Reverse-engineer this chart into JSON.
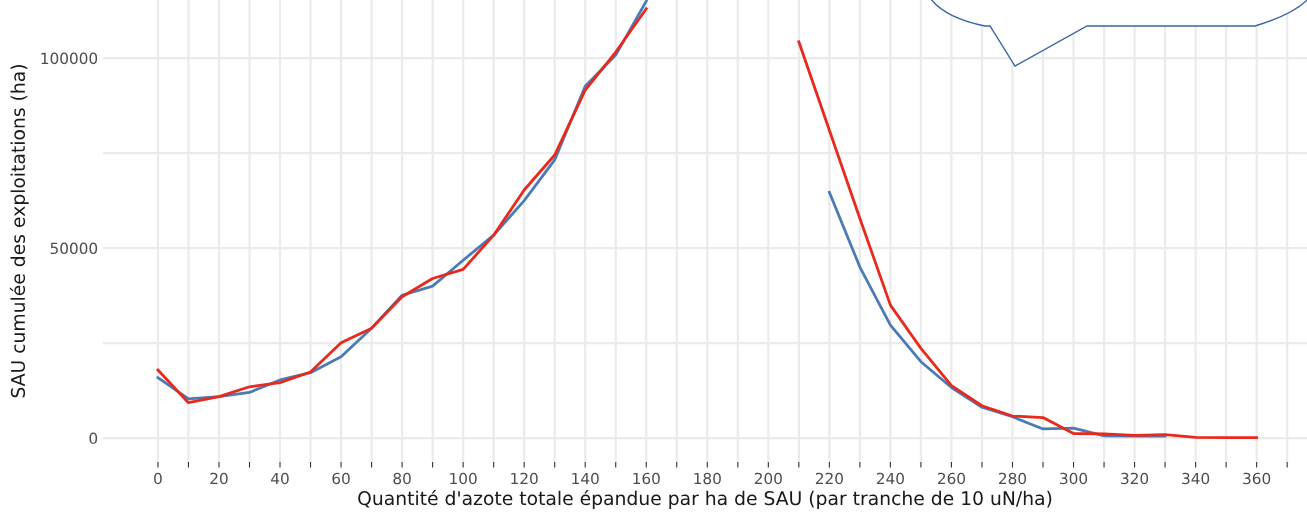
{
  "chart_data": {
    "type": "line",
    "xlabel": "Quantité d'azote totale épandue par ha de SAU (par tranche de 10 uN/ha)",
    "ylabel": "SAU cumulée des exploitations (ha)",
    "x": [
      0,
      10,
      20,
      30,
      40,
      50,
      60,
      70,
      80,
      90,
      100,
      110,
      120,
      130,
      140,
      150,
      160,
      170,
      180,
      190,
      200,
      210,
      220,
      230,
      240,
      250,
      260,
      270,
      280,
      290,
      300,
      310,
      320,
      330,
      340,
      350,
      360
    ],
    "series": [
      {
        "color": "#4a7bb7",
        "values": [
          15900,
          10300,
          10900,
          12000,
          15300,
          17200,
          21400,
          28900,
          37600,
          40000,
          46800,
          53400,
          62500,
          73200,
          92600,
          100800,
          115000,
          null,
          null,
          null,
          null,
          null,
          64700,
          45000,
          29700,
          20100,
          13300,
          8100,
          5600,
          2400,
          2600,
          600,
          500,
          500,
          null,
          null,
          null
        ]
      },
      {
        "color": "#e8291c",
        "values": [
          17900,
          9300,
          10900,
          13500,
          14600,
          17400,
          25100,
          28900,
          37200,
          42000,
          44400,
          53400,
          65300,
          74500,
          91600,
          101600,
          113000,
          null,
          null,
          null,
          null,
          104300,
          81000,
          57800,
          35000,
          23600,
          13800,
          8500,
          5800,
          5400,
          1200,
          1100,
          700,
          900,
          200,
          100,
          100
        ]
      }
    ],
    "xlim": [
      -18,
      376.5
    ],
    "ylim": [
      -6300,
      115300
    ],
    "xticks": [
      0,
      {
        "value": 10,
        "label": null
      },
      20,
      {
        "value": 30,
        "label": null
      },
      40,
      {
        "value": 50,
        "label": null
      },
      60,
      {
        "value": 70,
        "label": null
      },
      80,
      {
        "value": 90,
        "label": null
      },
      100,
      {
        "value": 110,
        "label": null
      },
      120,
      {
        "value": 130,
        "label": null
      },
      140,
      {
        "value": 150,
        "label": null
      },
      160,
      {
        "value": 170,
        "label": null
      },
      180,
      {
        "value": 190,
        "label": null
      },
      200,
      {
        "value": 210,
        "label": null
      },
      220,
      {
        "value": 230,
        "label": null
      },
      240,
      {
        "value": 250,
        "label": null
      },
      260,
      {
        "value": 270,
        "label": null
      },
      280,
      {
        "value": 290,
        "label": null
      },
      300,
      {
        "value": 310,
        "label": null
      },
      320,
      {
        "value": 330,
        "label": null
      },
      340,
      {
        "value": 350,
        "label": null
      },
      360,
      {
        "value": 370,
        "label": null
      }
    ],
    "yticks": [
      0,
      {
        "value": 25000,
        "label": null
      },
      50000,
      {
        "value": 75000,
        "label": null
      },
      100000
    ],
    "grid": true,
    "line_style": "solid"
  }
}
